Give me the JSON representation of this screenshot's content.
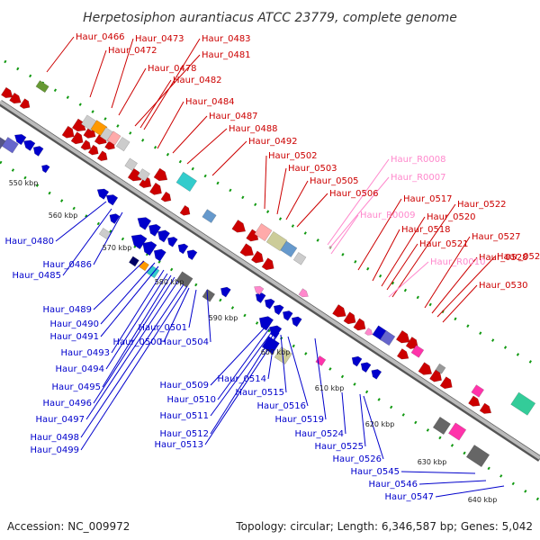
{
  "title": "Herpetosiphon aurantiacus ATCC 23779, complete genome",
  "accession": "Accession: NC_009972",
  "topology": "Topology: circular; Length: 6,346,587 bp; Genes: 5,042",
  "kbp_labels": [
    "550 kbp",
    "560 kbp",
    "570 kbp",
    "580 kbp",
    "590 kbp",
    "600 kbp",
    "610 kbp",
    "620 kbp",
    "630 kbp",
    "640 kbp"
  ],
  "colors": {
    "forward": "#cc0000",
    "reverse": "#0000cc",
    "rna": "#ff88cc",
    "backbone": "#888888",
    "ticks": "#119911"
  },
  "forward_labels": [
    "Haur_0466",
    "Haur_0472",
    "Haur_0473",
    "Haur_0478",
    "Haur_0481",
    "Haur_0482",
    "Haur_0483",
    "Haur_0484",
    "Haur_0487",
    "Haur_0488",
    "Haur_0492",
    "Haur_0502",
    "Haur_0503",
    "Haur_0505",
    "Haur_0506",
    "Haur_0517",
    "Haur_0518",
    "Haur_0520",
    "Haur_0521",
    "Haur_0522",
    "Haur_0527",
    "Haur_0528",
    "Haur_0529",
    "Haur_0530"
  ],
  "rna_labels": [
    "Haur_R0008",
    "Haur_R0007",
    "Haur_R0009",
    "Haur_R0010"
  ],
  "reverse_labels": [
    "Haur_0480",
    "Haur_0485",
    "Haur_0486",
    "Haur_0489",
    "Haur_0490",
    "Haur_0491",
    "Haur_0493",
    "Haur_0494",
    "Haur_0495",
    "Haur_0496",
    "Haur_0497",
    "Haur_0498",
    "Haur_0499",
    "Haur_0500",
    "Haur_0501",
    "Haur_0504",
    "Haur_0509",
    "Haur_0510",
    "Haur_0511",
    "Haur_0512",
    "Haur_0513",
    "Haur_0514",
    "Haur_0515",
    "Haur_0516",
    "Haur_0519",
    "Haur_0524",
    "Haur_0525",
    "Haur_0526",
    "Haur_0545",
    "Haur_0546",
    "Haur_0547"
  ]
}
